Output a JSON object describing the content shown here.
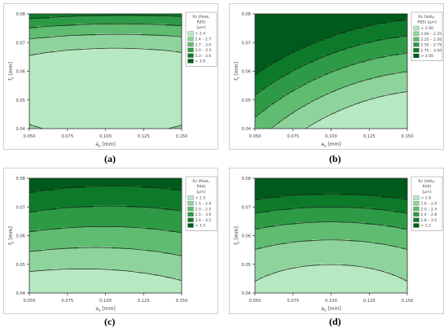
{
  "colors": {
    "levels": [
      "#b6e8c2",
      "#8fd39c",
      "#5fbc70",
      "#2e9a45",
      "#0d7a29",
      "#005a1b"
    ],
    "line": "#1f1f1f"
  },
  "panel_labels": [
    "(a)",
    "(b)",
    "(c)",
    "(d)"
  ],
  "chart_data": [
    {
      "type": "contour",
      "xlabel": "aₑ [mm]",
      "ylabel": "fₓ [mm]",
      "xlabel_main": "a",
      "xlabel_sub": "e",
      "xlabel_unit": " [mm]",
      "ylabel_main": "f",
      "ylabel_sub": "z",
      "ylabel_unit": " [mm]",
      "xlim": [
        0.05,
        0.15
      ],
      "ylim": [
        0.04,
        0.08
      ],
      "xticks": [
        "0.050",
        "0.075",
        "0.100",
        "0.125",
        "0.150"
      ],
      "yticks": [
        "0.04",
        "0.05",
        "0.06",
        "0.07",
        "0.08"
      ],
      "legend_title": [
        "Rz (Peak,",
        "R85)",
        "[µm]"
      ],
      "legend": [
        "<  2.4",
        "2.4  –  2.7",
        "2.7  –  3.0",
        "3.0  –  3.3",
        "3.3  –  3.6",
        ">  3.6"
      ],
      "levels": [
        2.4,
        2.7,
        3.0,
        3.3,
        3.6
      ],
      "model": "a"
    },
    {
      "type": "contour",
      "xlabel": "aₑ [mm]",
      "ylabel": "fₓ [mm]",
      "xlabel_main": "a",
      "xlabel_sub": "e",
      "xlabel_unit": " [mm]",
      "ylabel_main": "f",
      "ylabel_sub": "z",
      "ylabel_unit": " [mm]",
      "xlim": [
        0.05,
        0.15
      ],
      "ylim": [
        0.04,
        0.08
      ],
      "xticks": [
        "0.050",
        "0.075",
        "0.100",
        "0.125",
        "0.150"
      ],
      "yticks": [
        "0.04",
        "0.05",
        "0.06",
        "0.07",
        "0.08"
      ],
      "legend_title": [
        "Rz (Vally,",
        "R85) [µm]"
      ],
      "legend": [
        "<  2.00",
        "2.00  –  2.25",
        "2.25  –  2.50",
        "2.50  –  2.75",
        "2.75  –  3.00",
        ">  3.00"
      ],
      "levels": [
        2.0,
        2.25,
        2.5,
        2.75,
        3.0
      ],
      "model": "b"
    },
    {
      "type": "contour",
      "xlabel": "aₑ [mm]",
      "ylabel": "fₓ [mm]",
      "xlabel_main": "a",
      "xlabel_sub": "e",
      "xlabel_unit": " [mm]",
      "ylabel_main": "f",
      "ylabel_sub": "z",
      "ylabel_unit": " [mm]",
      "xlim": [
        0.05,
        0.15
      ],
      "ylim": [
        0.04,
        0.08
      ],
      "xticks": [
        "0.050",
        "0.075",
        "0.100",
        "0.125",
        "0.150"
      ],
      "yticks": [
        "0.04",
        "0.05",
        "0.06",
        "0.07",
        "0.08"
      ],
      "legend_title": [
        "Rz (Peak,",
        "R90)",
        "[µm]"
      ],
      "legend": [
        "<  1.5",
        "1.5  –  2.0",
        "2.0  –  2.5",
        "2.5  –  3.0",
        "3.0  –  3.5",
        ">  3.5"
      ],
      "levels": [
        1.5,
        2.0,
        2.5,
        3.0,
        3.5
      ],
      "model": "c"
    },
    {
      "type": "contour",
      "xlabel": "aₑ [mm]",
      "ylabel": "fₓ [mm]",
      "xlabel_main": "a",
      "xlabel_sub": "e",
      "xlabel_unit": " [mm]",
      "ylabel_main": "f",
      "ylabel_sub": "z",
      "ylabel_unit": " [mm]",
      "xlim": [
        0.05,
        0.15
      ],
      "ylim": [
        0.04,
        0.08
      ],
      "xticks": [
        "0.050",
        "0.075",
        "0.100",
        "0.125",
        "0.150"
      ],
      "yticks": [
        "0.04",
        "0.05",
        "0.06",
        "0.07",
        "0.08"
      ],
      "legend_title": [
        "Rz (Vally,",
        "R90)",
        "[µm]"
      ],
      "legend": [
        "<  1.6",
        "1.6  –  2.0",
        "2.0  –  2.4",
        "2.4  –  2.8",
        "2.8  –  3.2",
        ">  3.2"
      ],
      "levels": [
        1.6,
        2.0,
        2.4,
        2.8,
        3.2
      ],
      "model": "d"
    }
  ]
}
